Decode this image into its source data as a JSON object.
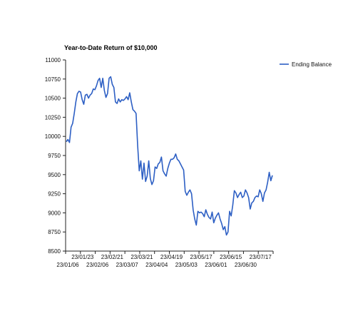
{
  "chart_data": {
    "type": "line",
    "title": "Year-to-Date Return of $10,000",
    "xlabel": "",
    "ylabel": "",
    "ylim": [
      8500,
      11000
    ],
    "yticks": [
      8500,
      8750,
      9000,
      9250,
      9500,
      9750,
      10000,
      10250,
      10500,
      10750,
      11000
    ],
    "x_ticks_upper": [
      "23/01/23",
      "23/02/21",
      "23/03/21",
      "23/04/19",
      "23/05/17",
      "23/06/15",
      "23/07/17"
    ],
    "x_ticks_lower": [
      "23/01/06",
      "23/02/06",
      "23/03/07",
      "23/04/04",
      "23/05/03",
      "23/06/01",
      "23/06/30"
    ],
    "grid": false,
    "legend_position": "right",
    "series": [
      {
        "name": "Ending Balance",
        "color": "#2d5fc4",
        "values": [
          9930,
          9960,
          9920,
          10120,
          10170,
          10300,
          10450,
          10560,
          10590,
          10580,
          10480,
          10420,
          10540,
          10550,
          10500,
          10540,
          10560,
          10620,
          10610,
          10660,
          10730,
          10760,
          10640,
          10760,
          10600,
          10510,
          10560,
          10760,
          10780,
          10680,
          10640,
          10450,
          10430,
          10490,
          10450,
          10480,
          10470,
          10490,
          10520,
          10480,
          10570,
          10450,
          10350,
          10330,
          10300,
          9880,
          9550,
          9680,
          9440,
          9650,
          9410,
          9480,
          9680,
          9450,
          9370,
          9420,
          9600,
          9580,
          9640,
          9660,
          9730,
          9550,
          9510,
          9480,
          9580,
          9650,
          9700,
          9700,
          9720,
          9770,
          9700,
          9680,
          9640,
          9600,
          9560,
          9280,
          9230,
          9270,
          9300,
          9250,
          9040,
          8920,
          8840,
          9020,
          9000,
          9010,
          8990,
          8950,
          9040,
          8980,
          8940,
          8920,
          9010,
          8870,
          8930,
          8970,
          9000,
          8920,
          8860,
          8780,
          8820,
          8710,
          8750,
          9020,
          8960,
          9100,
          9290,
          9260,
          9200,
          9240,
          9270,
          9200,
          9220,
          9300,
          9260,
          9200,
          9050,
          9130,
          9150,
          9200,
          9220,
          9210,
          9300,
          9250,
          9150,
          9260,
          9300,
          9400,
          9530,
          9420,
          9490
        ]
      }
    ]
  }
}
